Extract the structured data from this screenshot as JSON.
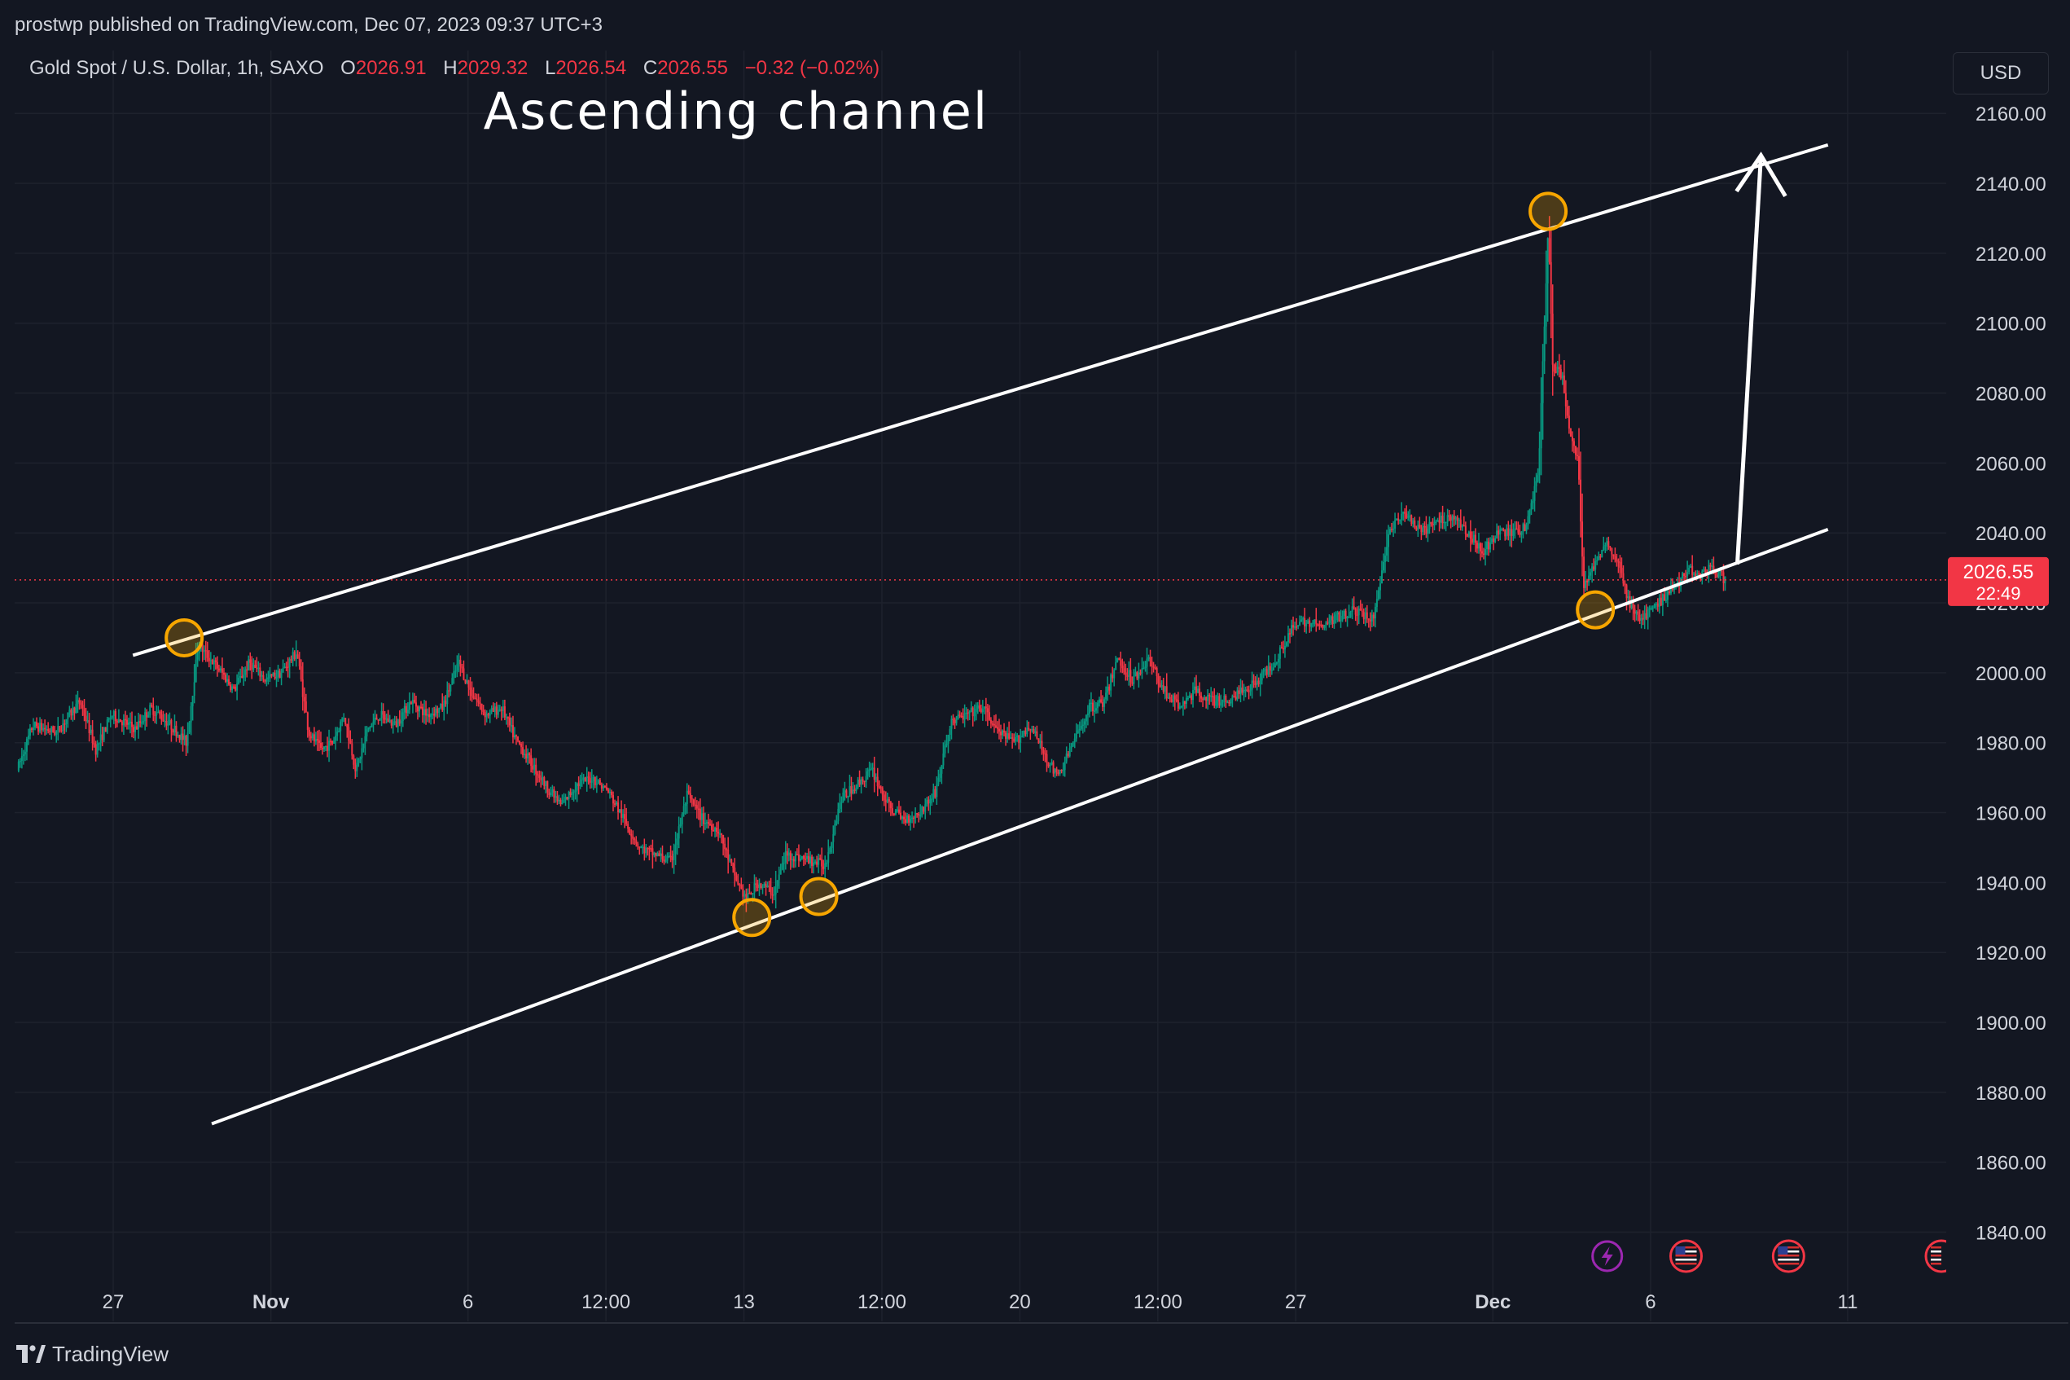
{
  "header": {
    "publisher": "prostwp",
    "published_text": "published on TradingView.com, Dec 07, 2023 09:37 UTC+3"
  },
  "legend": {
    "symbol": "Gold Spot / U.S. Dollar, 1h, SAXO",
    "open_label": "O",
    "open": "2026.91",
    "high_label": "H",
    "high": "2029.32",
    "low_label": "L",
    "low": "2026.54",
    "close_label": "C",
    "close": "2026.55",
    "change": "−0.32 (−0.02%)"
  },
  "currency_button": "USD",
  "price_badge": {
    "price": "2026.55",
    "countdown": "22:49"
  },
  "footer": {
    "logo_text": "TradingView"
  },
  "colors": {
    "background": "#131722",
    "grid": "#1e222d",
    "up": "#089981",
    "down": "#f23645",
    "annotation": "#ffffff",
    "marker": "#f7a600",
    "last_price": "#f23645"
  },
  "icons": [
    "lightning-event-icon",
    "us-flag-event-icon",
    "us-flag-event-icon"
  ],
  "chart_data": {
    "type": "candlestick",
    "symbol": "XAUUSD",
    "timeframe": "1h",
    "annotation_text": "Ascending channel",
    "y_ticks": [
      "2160.00",
      "2140.00",
      "2120.00",
      "2100.00",
      "2080.00",
      "2060.00",
      "2040.00",
      "2020.00",
      "2000.00",
      "1980.00",
      "1960.00",
      "1940.00",
      "1920.00",
      "1900.00",
      "1880.00",
      "1860.00",
      "1840.00"
    ],
    "ylim": [
      1828,
      2178
    ],
    "x_ticks": [
      {
        "label": "27",
        "day": -1
      },
      {
        "label": "Nov",
        "day": 3
      },
      {
        "label": "6",
        "day": 8
      },
      {
        "label": "12:00",
        "day": 11.5
      },
      {
        "label": "13",
        "day": 15
      },
      {
        "label": "12:00",
        "day": 18.5
      },
      {
        "label": "20",
        "day": 22
      },
      {
        "label": "12:00",
        "day": 25.5
      },
      {
        "label": "27",
        "day": 29
      },
      {
        "label": "Dec",
        "day": 34
      },
      {
        "label": "6",
        "day": 38
      },
      {
        "label": "11",
        "day": 43
      }
    ],
    "x_span_days": [
      -3.5,
      45.5
    ],
    "last_price": 2026.55,
    "price_path": [
      [
        -3.4,
        1972
      ],
      [
        -3.0,
        1985
      ],
      [
        -2.4,
        1983
      ],
      [
        -1.8,
        1992
      ],
      [
        -1.4,
        1978
      ],
      [
        -1.0,
        1988
      ],
      [
        -0.4,
        1984
      ],
      [
        0,
        1990
      ],
      [
        0.5,
        1985
      ],
      [
        0.9,
        1980
      ],
      [
        1.2,
        2008
      ],
      [
        1.5,
        2004
      ],
      [
        1.8,
        2000
      ],
      [
        2.1,
        1995
      ],
      [
        2.5,
        2003
      ],
      [
        2.9,
        1998
      ],
      [
        3.3,
        2000
      ],
      [
        3.7,
        2006
      ],
      [
        4.0,
        1983
      ],
      [
        4.3,
        1978
      ],
      [
        4.6,
        1980
      ],
      [
        4.9,
        1988
      ],
      [
        5.2,
        1972
      ],
      [
        5.5,
        1984
      ],
      [
        5.8,
        1988
      ],
      [
        6.2,
        1985
      ],
      [
        6.6,
        1992
      ],
      [
        7.0,
        1988
      ],
      [
        7.4,
        1990
      ],
      [
        7.8,
        2003
      ],
      [
        8.1,
        1995
      ],
      [
        8.5,
        1988
      ],
      [
        8.9,
        1990
      ],
      [
        9.2,
        1982
      ],
      [
        9.6,
        1975
      ],
      [
        10.0,
        1968
      ],
      [
        10.4,
        1962
      ],
      [
        10.8,
        1968
      ],
      [
        11.2,
        1970
      ],
      [
        11.6,
        1966
      ],
      [
        12.0,
        1958
      ],
      [
        12.4,
        1950
      ],
      [
        12.8,
        1948
      ],
      [
        13.2,
        1946
      ],
      [
        13.6,
        1965
      ],
      [
        14.0,
        1958
      ],
      [
        14.4,
        1955
      ],
      [
        14.8,
        1942
      ],
      [
        15.1,
        1935
      ],
      [
        15.4,
        1940
      ],
      [
        15.8,
        1937
      ],
      [
        16.1,
        1948
      ],
      [
        16.5,
        1947
      ],
      [
        16.8,
        1946
      ],
      [
        17.1,
        1945
      ],
      [
        17.5,
        1964
      ],
      [
        17.9,
        1968
      ],
      [
        18.3,
        1972
      ],
      [
        18.7,
        1962
      ],
      [
        19.1,
        1958
      ],
      [
        19.5,
        1960
      ],
      [
        19.9,
        1966
      ],
      [
        20.3,
        1986
      ],
      [
        20.7,
        1988
      ],
      [
        21.1,
        1990
      ],
      [
        21.5,
        1983
      ],
      [
        21.9,
        1980
      ],
      [
        22.3,
        1985
      ],
      [
        22.7,
        1976
      ],
      [
        23.0,
        1970
      ],
      [
        23.4,
        1980
      ],
      [
        23.8,
        1990
      ],
      [
        24.2,
        1992
      ],
      [
        24.5,
        2004
      ],
      [
        24.9,
        1998
      ],
      [
        25.3,
        2004
      ],
      [
        25.7,
        1995
      ],
      [
        26.1,
        1990
      ],
      [
        26.5,
        1995
      ],
      [
        26.9,
        1992
      ],
      [
        27.3,
        1992
      ],
      [
        27.7,
        1995
      ],
      [
        28.1,
        1998
      ],
      [
        28.5,
        2003
      ],
      [
        28.9,
        2012
      ],
      [
        29.3,
        2015
      ],
      [
        29.7,
        2013
      ],
      [
        30.1,
        2016
      ],
      [
        30.5,
        2018
      ],
      [
        31.0,
        2015
      ],
      [
        31.4,
        2040
      ],
      [
        31.8,
        2046
      ],
      [
        32.2,
        2040
      ],
      [
        32.6,
        2043
      ],
      [
        33.0,
        2045
      ],
      [
        33.4,
        2040
      ],
      [
        33.8,
        2035
      ],
      [
        34.2,
        2040
      ],
      [
        34.6,
        2040
      ],
      [
        34.9,
        2042
      ],
      [
        35.2,
        2058
      ],
      [
        35.45,
        2128
      ],
      [
        35.55,
        2088
      ],
      [
        35.8,
        2085
      ],
      [
        36.0,
        2068
      ],
      [
        36.2,
        2060
      ],
      [
        36.35,
        2025
      ],
      [
        36.6,
        2030
      ],
      [
        36.9,
        2038
      ],
      [
        37.2,
        2032
      ],
      [
        37.5,
        2020
      ],
      [
        37.8,
        2015
      ],
      [
        38.1,
        2018
      ],
      [
        38.4,
        2022
      ],
      [
        38.7,
        2025
      ],
      [
        39.0,
        2030
      ],
      [
        39.3,
        2028
      ],
      [
        39.6,
        2030
      ],
      [
        39.9,
        2027
      ]
    ],
    "channel": {
      "upper": [
        [
          -0.5,
          2005
        ],
        [
          42.5,
          2151
        ]
      ],
      "lower": [
        [
          1.5,
          1871
        ],
        [
          42.5,
          2041
        ]
      ],
      "arrow": [
        [
          40.2,
          2031
        ],
        [
          40.8,
          2148
        ]
      ]
    },
    "touch_points": [
      {
        "day": 0.8,
        "price": 2010
      },
      {
        "day": 15.2,
        "price": 1930
      },
      {
        "day": 16.9,
        "price": 1936
      },
      {
        "day": 35.4,
        "price": 2132
      },
      {
        "day": 36.6,
        "price": 2018
      }
    ],
    "event_icons_day": [
      36.9,
      38.9,
      41.5
    ]
  }
}
